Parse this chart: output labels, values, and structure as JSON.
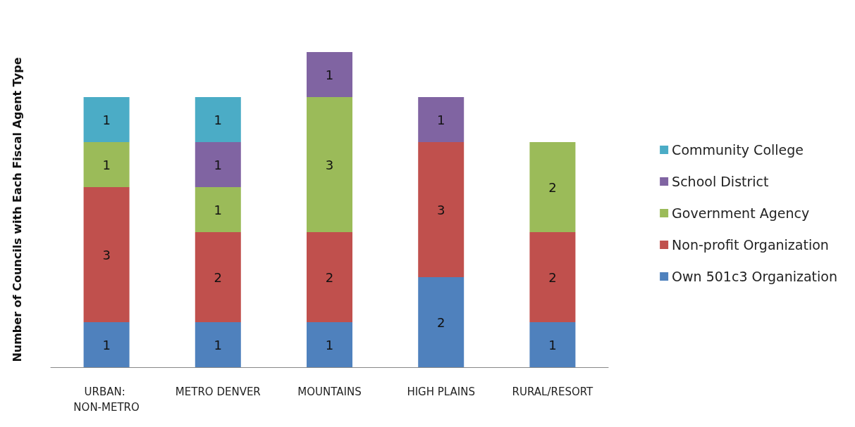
{
  "chart_data": {
    "type": "bar",
    "stacked": true,
    "ylabel": "Number of Councils with Each Fiscal Agent Type",
    "categories": [
      "URBAN: NON-METRO",
      "METRO DENVER",
      "MOUNTAINS",
      "HIGH PLAINS",
      "RURAL/RESORT"
    ],
    "series": [
      {
        "name": "Own 501c3 Organization",
        "color": "#4f81bd",
        "values": [
          1,
          1,
          1,
          2,
          1
        ]
      },
      {
        "name": "Non-profit Organization",
        "color": "#c0504d",
        "values": [
          3,
          2,
          2,
          3,
          2
        ]
      },
      {
        "name": "Government Agency",
        "color": "#9bbb59",
        "values": [
          1,
          1,
          3,
          null,
          2
        ]
      },
      {
        "name": "School District",
        "color": "#8064a2",
        "values": [
          null,
          1,
          1,
          1,
          null
        ]
      },
      {
        "name": "Community College",
        "color": "#4bacc6",
        "values": [
          1,
          1,
          null,
          null,
          null
        ]
      }
    ],
    "data_labels": true,
    "legend": "right",
    "grid": false
  }
}
